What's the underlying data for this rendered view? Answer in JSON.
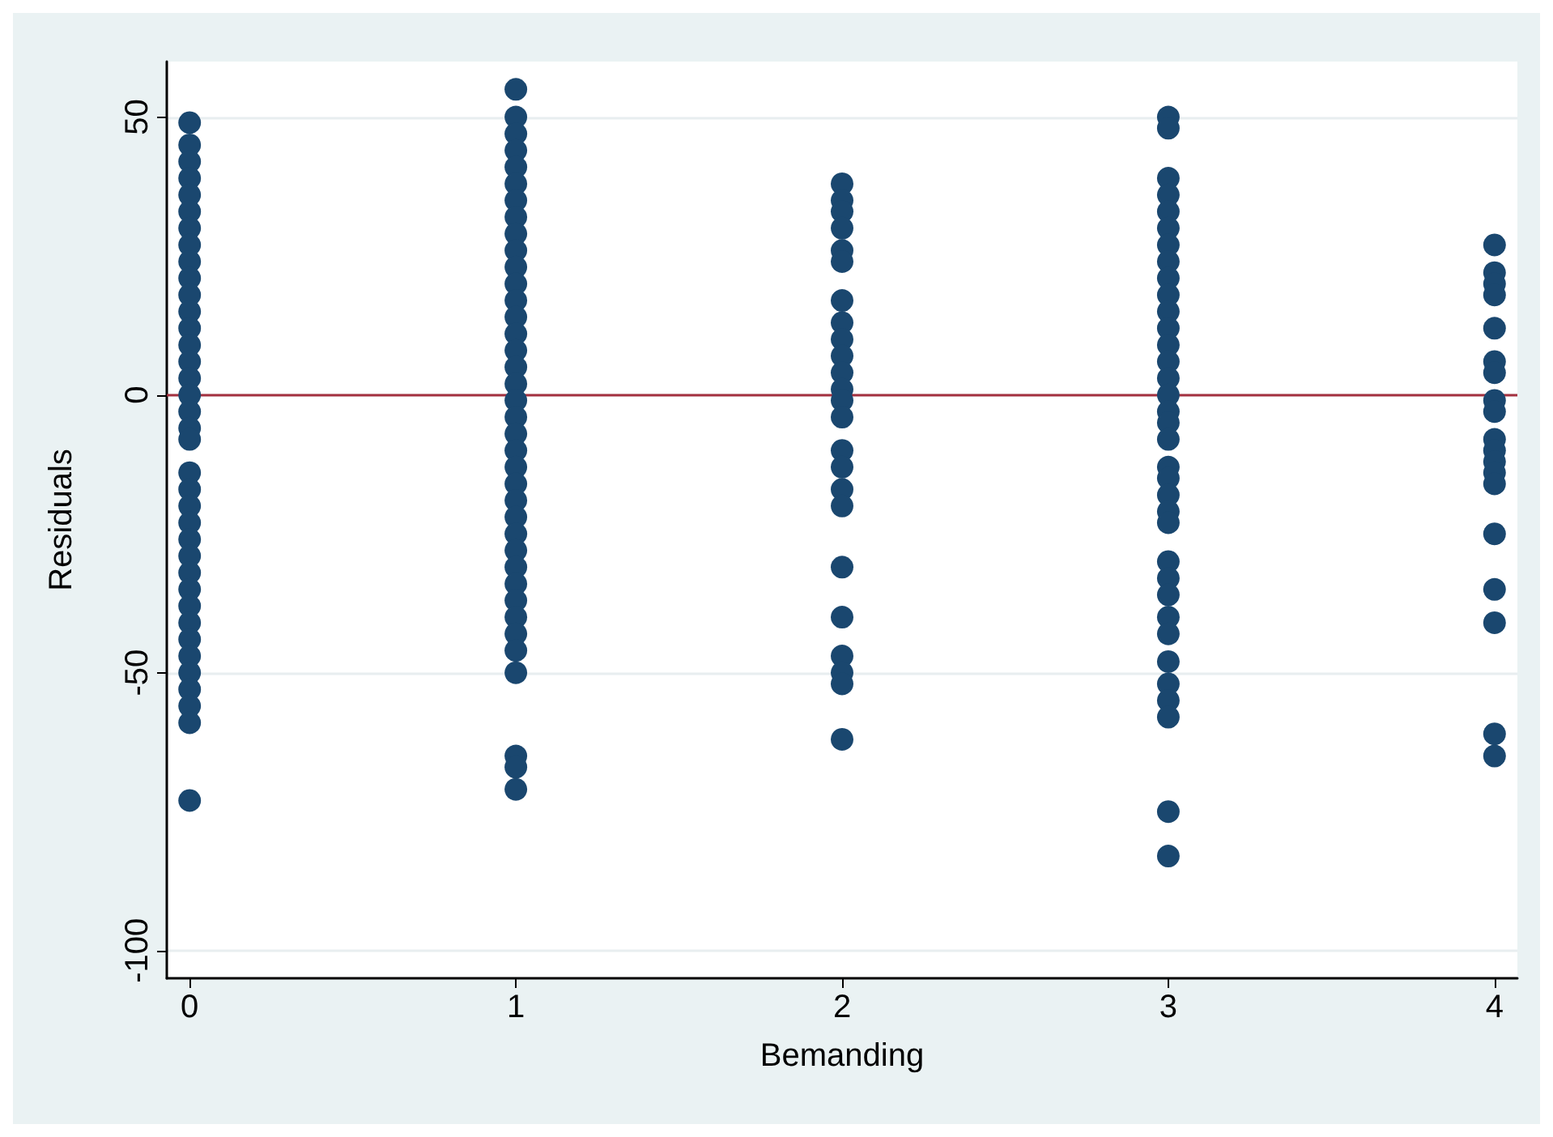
{
  "chart_data": {
    "type": "scatter",
    "xlabel": "Bemanding",
    "ylabel": "Residuals",
    "xlim": [
      -0.07,
      4.07
    ],
    "xticks": [
      0,
      1,
      2,
      3,
      4
    ],
    "ylim": [
      -105,
      60
    ],
    "yticks": [
      -100,
      -50,
      0,
      50
    ],
    "grid": "y",
    "marker": "circle",
    "ref_lines": [
      {
        "axis": "y",
        "value": 0,
        "color": "#a4303f"
      }
    ],
    "series": [
      {
        "color": "#1a476f",
        "x": [
          0,
          0,
          0,
          0,
          0,
          0,
          0,
          0,
          0,
          0,
          0,
          0,
          0,
          0,
          0,
          0,
          0,
          0,
          0,
          0,
          0,
          0,
          0,
          0,
          0,
          0,
          0,
          0,
          0,
          0,
          0,
          0,
          0,
          0,
          0,
          0,
          0
        ],
        "values": [
          49,
          45,
          42,
          39,
          36,
          33,
          30,
          27,
          24,
          21,
          18,
          15,
          12,
          9,
          6,
          3,
          0,
          -3,
          -6,
          -8,
          -14,
          -17,
          -20,
          -23,
          -26,
          -29,
          -32,
          -35,
          -38,
          -41,
          -44,
          -47,
          -50,
          -53,
          -56,
          -59,
          -73
        ]
      },
      {
        "color": "#1a476f",
        "x": [
          1,
          1,
          1,
          1,
          1,
          1,
          1,
          1,
          1,
          1,
          1,
          1,
          1,
          1,
          1,
          1,
          1,
          1,
          1,
          1,
          1,
          1,
          1,
          1,
          1,
          1,
          1,
          1,
          1,
          1,
          1,
          1,
          1,
          1,
          1,
          1,
          1,
          1
        ],
        "values": [
          55,
          50,
          47,
          44,
          41,
          38,
          35,
          32,
          29,
          26,
          23,
          20,
          17,
          14,
          11,
          8,
          5,
          2,
          -1,
          -4,
          -7,
          -10,
          -13,
          -16,
          -19,
          -22,
          -25,
          -28,
          -31,
          -34,
          -37,
          -40,
          -43,
          -46,
          -50,
          -65,
          -67,
          -71
        ]
      },
      {
        "color": "#1a476f",
        "x": [
          2,
          2,
          2,
          2,
          2,
          2,
          2,
          2,
          2,
          2,
          2,
          2,
          2,
          2,
          2,
          2,
          2,
          2,
          2,
          2,
          2,
          2,
          2,
          2
        ],
        "values": [
          38,
          35,
          33,
          30,
          26,
          24,
          17,
          13,
          10,
          7,
          4,
          1,
          -1,
          -4,
          -10,
          -13,
          -17,
          -20,
          -31,
          -40,
          -47,
          -50,
          -52,
          -62
        ]
      },
      {
        "color": "#1a476f",
        "x": [
          3,
          3,
          3,
          3,
          3,
          3,
          3,
          3,
          3,
          3,
          3,
          3,
          3,
          3,
          3,
          3,
          3,
          3,
          3,
          3,
          3,
          3,
          3,
          3,
          3,
          3,
          3,
          3,
          3,
          3,
          3,
          3,
          3,
          3,
          3
        ],
        "values": [
          50,
          48,
          39,
          36,
          33,
          30,
          27,
          24,
          21,
          18,
          15,
          12,
          9,
          6,
          3,
          0,
          -3,
          -5,
          -8,
          -13,
          -15,
          -18,
          -21,
          -23,
          -30,
          -33,
          -36,
          -40,
          -43,
          -48,
          -52,
          -55,
          -58,
          -75,
          -83
        ]
      },
      {
        "color": "#1a476f",
        "x": [
          4,
          4,
          4,
          4,
          4,
          4,
          4,
          4,
          4,
          4,
          4,
          4,
          4,
          4,
          4,
          4,
          4,
          4,
          4
        ],
        "values": [
          27,
          22,
          20,
          18,
          12,
          6,
          4,
          -1,
          -3,
          -8,
          -10,
          -12,
          -14,
          -16,
          -25,
          -35,
          -41,
          -61,
          -65
        ]
      }
    ]
  }
}
